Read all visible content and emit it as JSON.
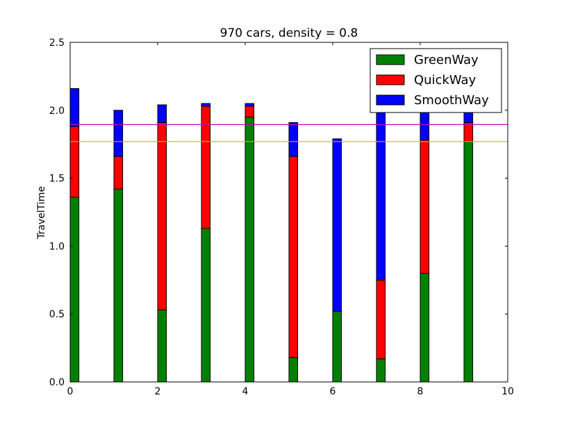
{
  "chart_data": {
    "type": "bar",
    "stacked": true,
    "title": "970 cars, density = 0.8",
    "xlabel": "",
    "ylabel": "TravelTime",
    "xlim": [
      0,
      10
    ],
    "ylim": [
      0,
      2.5
    ],
    "x_ticks": [
      "0",
      "2",
      "4",
      "6",
      "8",
      "10"
    ],
    "y_ticks": [
      "0.0",
      "0.5",
      "1.0",
      "1.5",
      "2.0",
      "2.5"
    ],
    "x": [
      0,
      1,
      2,
      3,
      4,
      5,
      6,
      7,
      8,
      9
    ],
    "bar_width": 0.2,
    "series": [
      {
        "name": "GreenWay",
        "color": "#008000",
        "values": [
          1.36,
          1.42,
          0.53,
          1.13,
          1.95,
          0.18,
          0.52,
          0.17,
          0.8,
          1.77
        ]
      },
      {
        "name": "QuickWay",
        "color": "#ff0000",
        "values": [
          0.52,
          0.24,
          1.38,
          0.9,
          0.08,
          1.48,
          0.0,
          0.58,
          0.98,
          0.14
        ]
      },
      {
        "name": "SmoothWay",
        "color": "#0000ff",
        "values": [
          0.28,
          0.34,
          0.13,
          0.02,
          0.02,
          0.25,
          1.27,
          1.4,
          0.3,
          0.25
        ]
      }
    ],
    "reference_lines": [
      {
        "y": 1.895,
        "color": "#bf00bf"
      },
      {
        "y": 1.77,
        "color": "#bfbf00"
      }
    ],
    "legend_position": "top-right",
    "grid": false
  }
}
